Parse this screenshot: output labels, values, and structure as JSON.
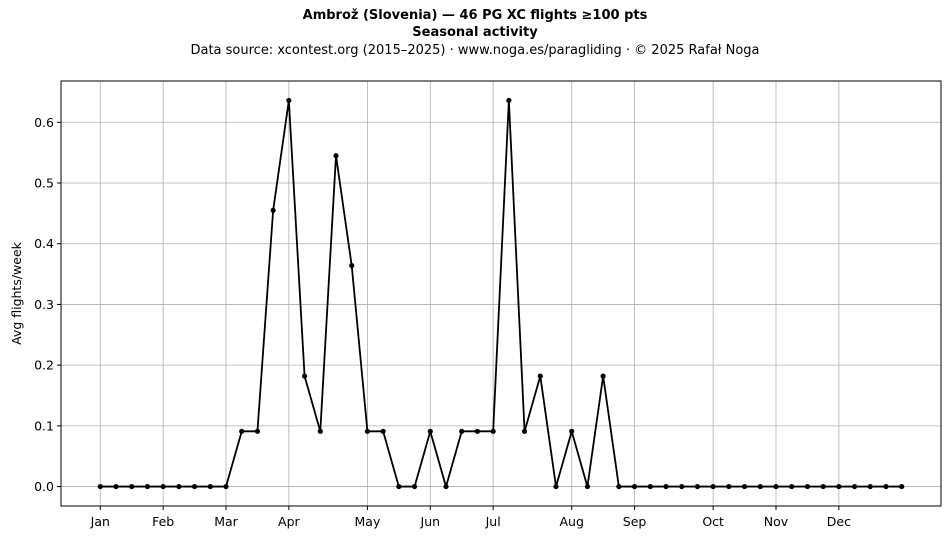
{
  "title_line1": "Ambrož (Slovenia)  —  46 PG XC flights ≥100 pts",
  "title_line2": "Seasonal activity",
  "subtitle": "Data source: xcontest.org (2015–2025)  ·  www.noga.es/paragliding  ·  © 2025 Rafał Noga",
  "chart_data": {
    "type": "line",
    "title": "Ambrož (Slovenia)  —  46 PG XC flights ≥100 pts",
    "subtitle": "Seasonal activity",
    "xlabel": "",
    "ylabel": "Avg flights/week",
    "x_unit": "week of year",
    "x": [
      1,
      2,
      3,
      4,
      5,
      6,
      7,
      8,
      9,
      10,
      11,
      12,
      13,
      14,
      15,
      16,
      17,
      18,
      19,
      20,
      21,
      22,
      23,
      24,
      25,
      26,
      27,
      28,
      29,
      30,
      31,
      32,
      33,
      34,
      35,
      36,
      37,
      38,
      39,
      40,
      41,
      42,
      43,
      44,
      45,
      46,
      47,
      48,
      49,
      50,
      51,
      52
    ],
    "series": [
      {
        "values": [
          0,
          0,
          0,
          0,
          0,
          0,
          0,
          0,
          0,
          0.091,
          0.091,
          0.455,
          0.636,
          0.182,
          0.091,
          0.545,
          0.364,
          0.091,
          0.091,
          0,
          0,
          0.091,
          0,
          0.091,
          0.091,
          0.091,
          0.636,
          0.091,
          0.182,
          0,
          0.091,
          0,
          0.182,
          0,
          0,
          0,
          0,
          0,
          0,
          0,
          0,
          0,
          0,
          0,
          0,
          0,
          0,
          0,
          0,
          0,
          0,
          0
        ],
        "color": "#000000",
        "marker": "circle"
      }
    ],
    "xticks": [
      {
        "label": "Jan",
        "week": 1
      },
      {
        "label": "Feb",
        "week": 5
      },
      {
        "label": "Mar",
        "week": 9
      },
      {
        "label": "Apr",
        "week": 13
      },
      {
        "label": "May",
        "week": 18
      },
      {
        "label": "Jun",
        "week": 22
      },
      {
        "label": "Jul",
        "week": 26
      },
      {
        "label": "Aug",
        "week": 31
      },
      {
        "label": "Sep",
        "week": 35
      },
      {
        "label": "Oct",
        "week": 40
      },
      {
        "label": "Nov",
        "week": 44
      },
      {
        "label": "Dec",
        "week": 48
      }
    ],
    "yticks": [
      0,
      0.1,
      0.2,
      0.3,
      0.4,
      0.5,
      0.6
    ],
    "xlim": [
      -1.5,
      54.5
    ],
    "ylim": [
      -0.032,
      0.668
    ],
    "grid": true,
    "legend": "none"
  }
}
